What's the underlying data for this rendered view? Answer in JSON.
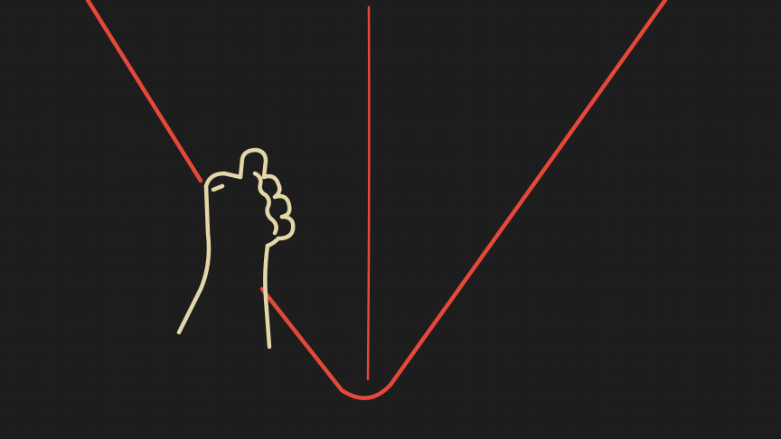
{
  "scene": {
    "background_color": "#1d1d1d",
    "rope_color": "#e5483a",
    "hand_color": "#e3d6a8",
    "rope_icon": "v-rope",
    "plumb_line_icon": "vertical-line",
    "hand_icon": "grasping-hand"
  }
}
